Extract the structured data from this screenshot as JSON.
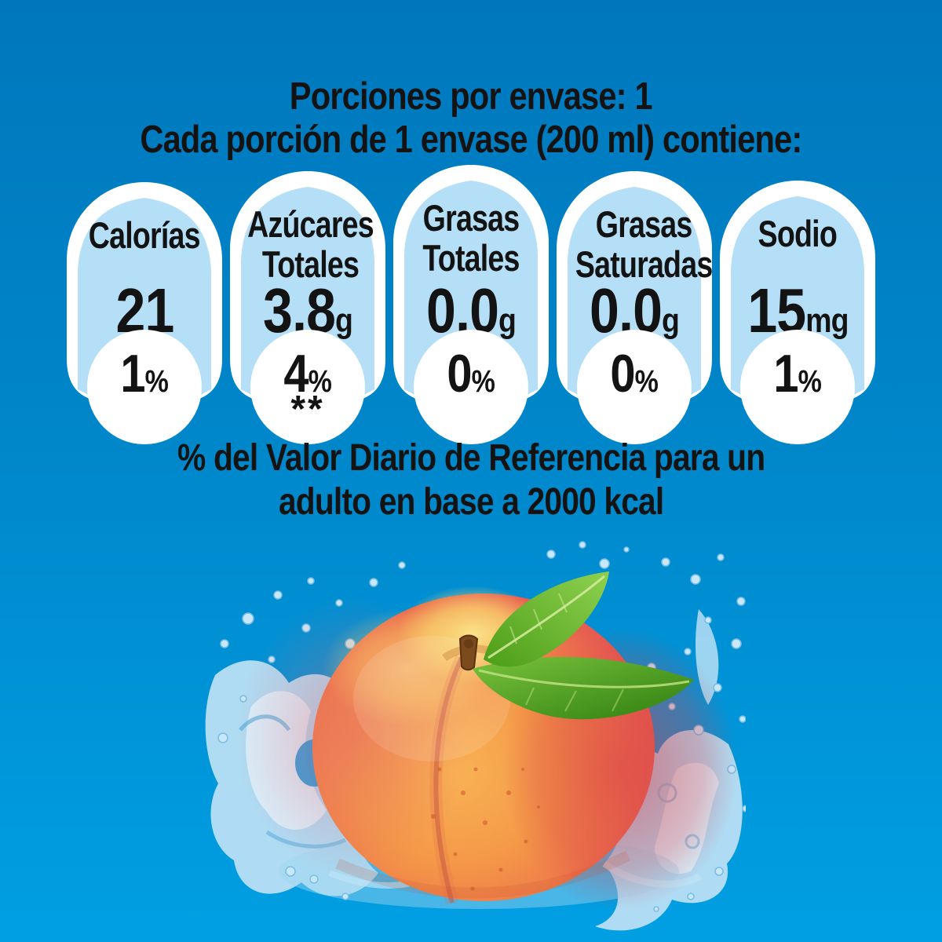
{
  "background": {
    "top_color": "#0077BD",
    "bottom_color": "#009FE3"
  },
  "header": {
    "line1": "Porciones por envase: 1",
    "line2": "Cada porción de 1 envase (200 ml) contiene:"
  },
  "panels": [
    {
      "id": "calorias",
      "title": "Calorías",
      "value": "21",
      "unit": "",
      "percent": "1",
      "percent_sign": "%",
      "note": ""
    },
    {
      "id": "azucares-totales",
      "title": "Azúcares\nTotales",
      "value": "3,8",
      "unit": "g",
      "percent": "4",
      "percent_sign": "%",
      "note": "**"
    },
    {
      "id": "grasas-totales",
      "title": "Grasas\nTotales",
      "value": "0,0",
      "unit": "g",
      "percent": "0",
      "percent_sign": "%",
      "note": ""
    },
    {
      "id": "grasas-saturadas",
      "title": "Grasas\nSaturadas",
      "value": "0,0",
      "unit": "g",
      "percent": "0",
      "percent_sign": "%",
      "note": ""
    },
    {
      "id": "sodio",
      "title": "Sodio",
      "value": "15",
      "unit": "mg",
      "percent": "1",
      "percent_sign": "%",
      "note": ""
    }
  ],
  "footer": {
    "text": "% del Valor Diario de Referencia para un\nadulto en base a 2000 kcal"
  },
  "image": {
    "name": "peach-water-splash",
    "alt": "Durazno fresco con hojas y salpicadura de agua"
  },
  "colors": {
    "panel_fill": "#B5DFF7",
    "panel_border": "#FFFFFF",
    "text": "#131313"
  }
}
